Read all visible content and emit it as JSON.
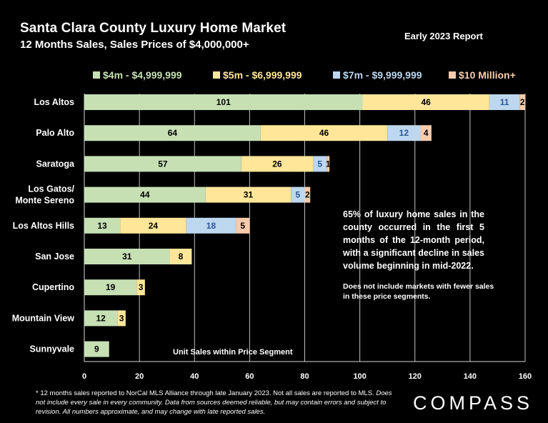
{
  "header": {
    "title": "Santa Clara County Luxury Home Market",
    "subtitle": "12 Months Sales, Sales Prices of $4,000,000+",
    "report": "Early 2023 Report"
  },
  "notes": {
    "main": "65% of luxury home sales in the county occurred in the first 5 months of the 12-month period, with a significant decline in sales volume beginning in mid-2022.",
    "secondary": "Does not include markets with fewer sales in these price segments.",
    "unit_label": "Unit Sales within Price Segment",
    "footnote_plain": "* 12 months sales reported to NorCal MLS Alliance through late January 2023. Not all sales are reported to MLS. ",
    "footnote_italic": "Does not include every sale in every community. Data from  sources deemed reliable, but may contain errors and subject to revision. All numbers approximate, and may change with late reported sales."
  },
  "logo": {
    "text": "COMPASS"
  },
  "colors": {
    "background": "#000000",
    "s1": "#c6e0b4",
    "s2": "#ffe699",
    "s3": "#bdd7ee",
    "s4": "#f8cbad",
    "grid": "#bfbfbf"
  },
  "chart_data": {
    "type": "bar",
    "orientation": "horizontal",
    "stacked": true,
    "categories": [
      "Los Altos",
      "Palo Alto",
      "Saratoga",
      "Los Gatos/ Monte Sereno",
      "Los Altos Hills",
      "San Jose",
      "Cupertino",
      "Mountain View",
      "Sunnyvale"
    ],
    "series": [
      {
        "name": "$4m - $4,999,999",
        "values": [
          101,
          64,
          57,
          44,
          13,
          31,
          19,
          12,
          9
        ],
        "color": "#c6e0b4"
      },
      {
        "name": "$5m - $6,999,999",
        "values": [
          46,
          46,
          26,
          31,
          24,
          8,
          3,
          3,
          0
        ],
        "color": "#ffe699"
      },
      {
        "name": "$7m - $9,999,999",
        "values": [
          11,
          12,
          5,
          5,
          18,
          0,
          0,
          0,
          0
        ],
        "color": "#bdd7ee"
      },
      {
        "name": "$10 Million+",
        "values": [
          2,
          4,
          1,
          2,
          5,
          0,
          0,
          0,
          0
        ],
        "color": "#f8cbad"
      }
    ],
    "xlim": [
      0,
      160
    ],
    "xticks": [
      0,
      20,
      40,
      60,
      80,
      100,
      120,
      140,
      160
    ],
    "legend": "top",
    "grid": "vertical"
  }
}
